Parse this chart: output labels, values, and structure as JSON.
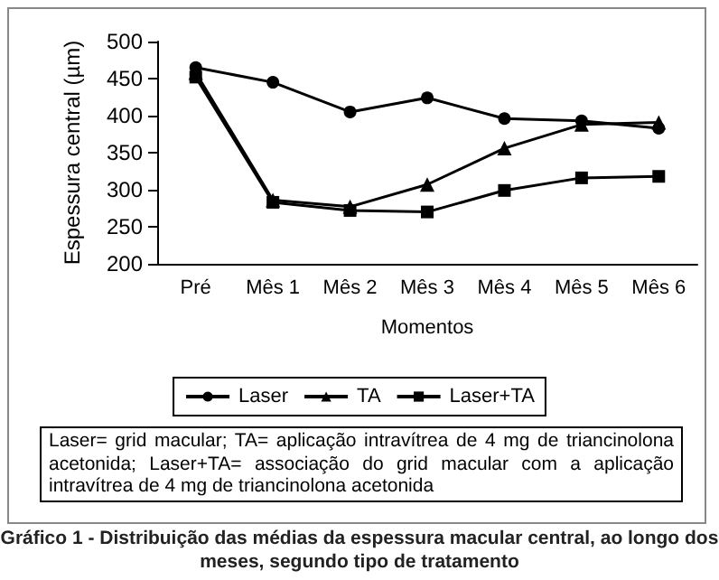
{
  "chart_data": {
    "type": "line",
    "title": "Gráfico 1 - Distribuição das médias da espessura macular central, ao longo dos meses, segundo tipo de tratamento",
    "xlabel": "Momentos",
    "ylabel": "Espessura central (µm)",
    "categories": [
      "Pré",
      "Mês 1",
      "Mês 2",
      "Mês 3",
      "Mês 4",
      "Mês 5",
      "Mês 6"
    ],
    "series": [
      {
        "name": "Laser",
        "color": "#000000",
        "marker": "circle",
        "values": [
          465,
          445,
          405,
          424,
          396,
          393,
          383
        ]
      },
      {
        "name": "TA",
        "color": "#000000",
        "marker": "triangle",
        "values": [
          458,
          286,
          277,
          307,
          356,
          388,
          391
        ]
      },
      {
        "name": "Laser+TA",
        "color": "#000000",
        "marker": "square",
        "values": [
          452,
          283,
          272,
          270,
          299,
          316,
          318
        ]
      }
    ],
    "ylim": [
      200,
      500
    ],
    "yticks": [
      200,
      250,
      300,
      350,
      400,
      450,
      500
    ],
    "grid": false,
    "legend": "bottom",
    "line_style": "solid",
    "annotations": [
      "Laser= grid macular; TA= aplicação intravítrea de 4 mg de triancinolona acetonida; Laser+TA= associação do grid macular com a aplicação intravítrea de 4 mg de triancinolona acetonida"
    ]
  }
}
